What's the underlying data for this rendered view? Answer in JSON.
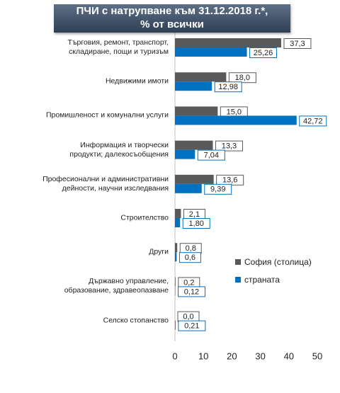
{
  "chart_data": {
    "type": "bar",
    "orientation": "horizontal",
    "title": "ПЧИ с натрупване към 31.12.2018 г.*,\n% от всички",
    "categories": [
      "Търговия, ремонт, транспорт,\nскладиране, пощи и туризъм",
      "Недвижими имоти",
      "Промишленост и комунални услуги",
      "Информация и творчески\nпродукти; далекосъобщения",
      "Професионални и административни\nдейности, научни изследвания",
      "Строителство",
      "Други",
      "Държавно управление,\nобразование, здравеопазване",
      "Селско стопанство"
    ],
    "series": [
      {
        "name": "София (столица)",
        "color": "#595959",
        "values": [
          37.3,
          18.0,
          15.0,
          13.3,
          13.6,
          2.1,
          0.8,
          0.2,
          0.0
        ],
        "value_labels": [
          "37,3",
          "18,0",
          "15,0",
          "13,3",
          "13,6",
          "2,1",
          "0,8",
          "0,2",
          "0,0"
        ]
      },
      {
        "name": "страната",
        "color": "#0070c0",
        "values": [
          25.26,
          12.98,
          42.72,
          7.04,
          9.39,
          1.8,
          0.6,
          0.12,
          0.21
        ],
        "value_labels": [
          "25,26",
          "12,98",
          "42,72",
          "7,04",
          "9,39",
          "1,80",
          "0,6",
          "0,12",
          "0,21"
        ]
      }
    ],
    "xlim": [
      0,
      50
    ],
    "xticks": [
      0,
      10,
      20,
      30,
      40,
      50
    ],
    "grid": false,
    "legend": "right"
  }
}
